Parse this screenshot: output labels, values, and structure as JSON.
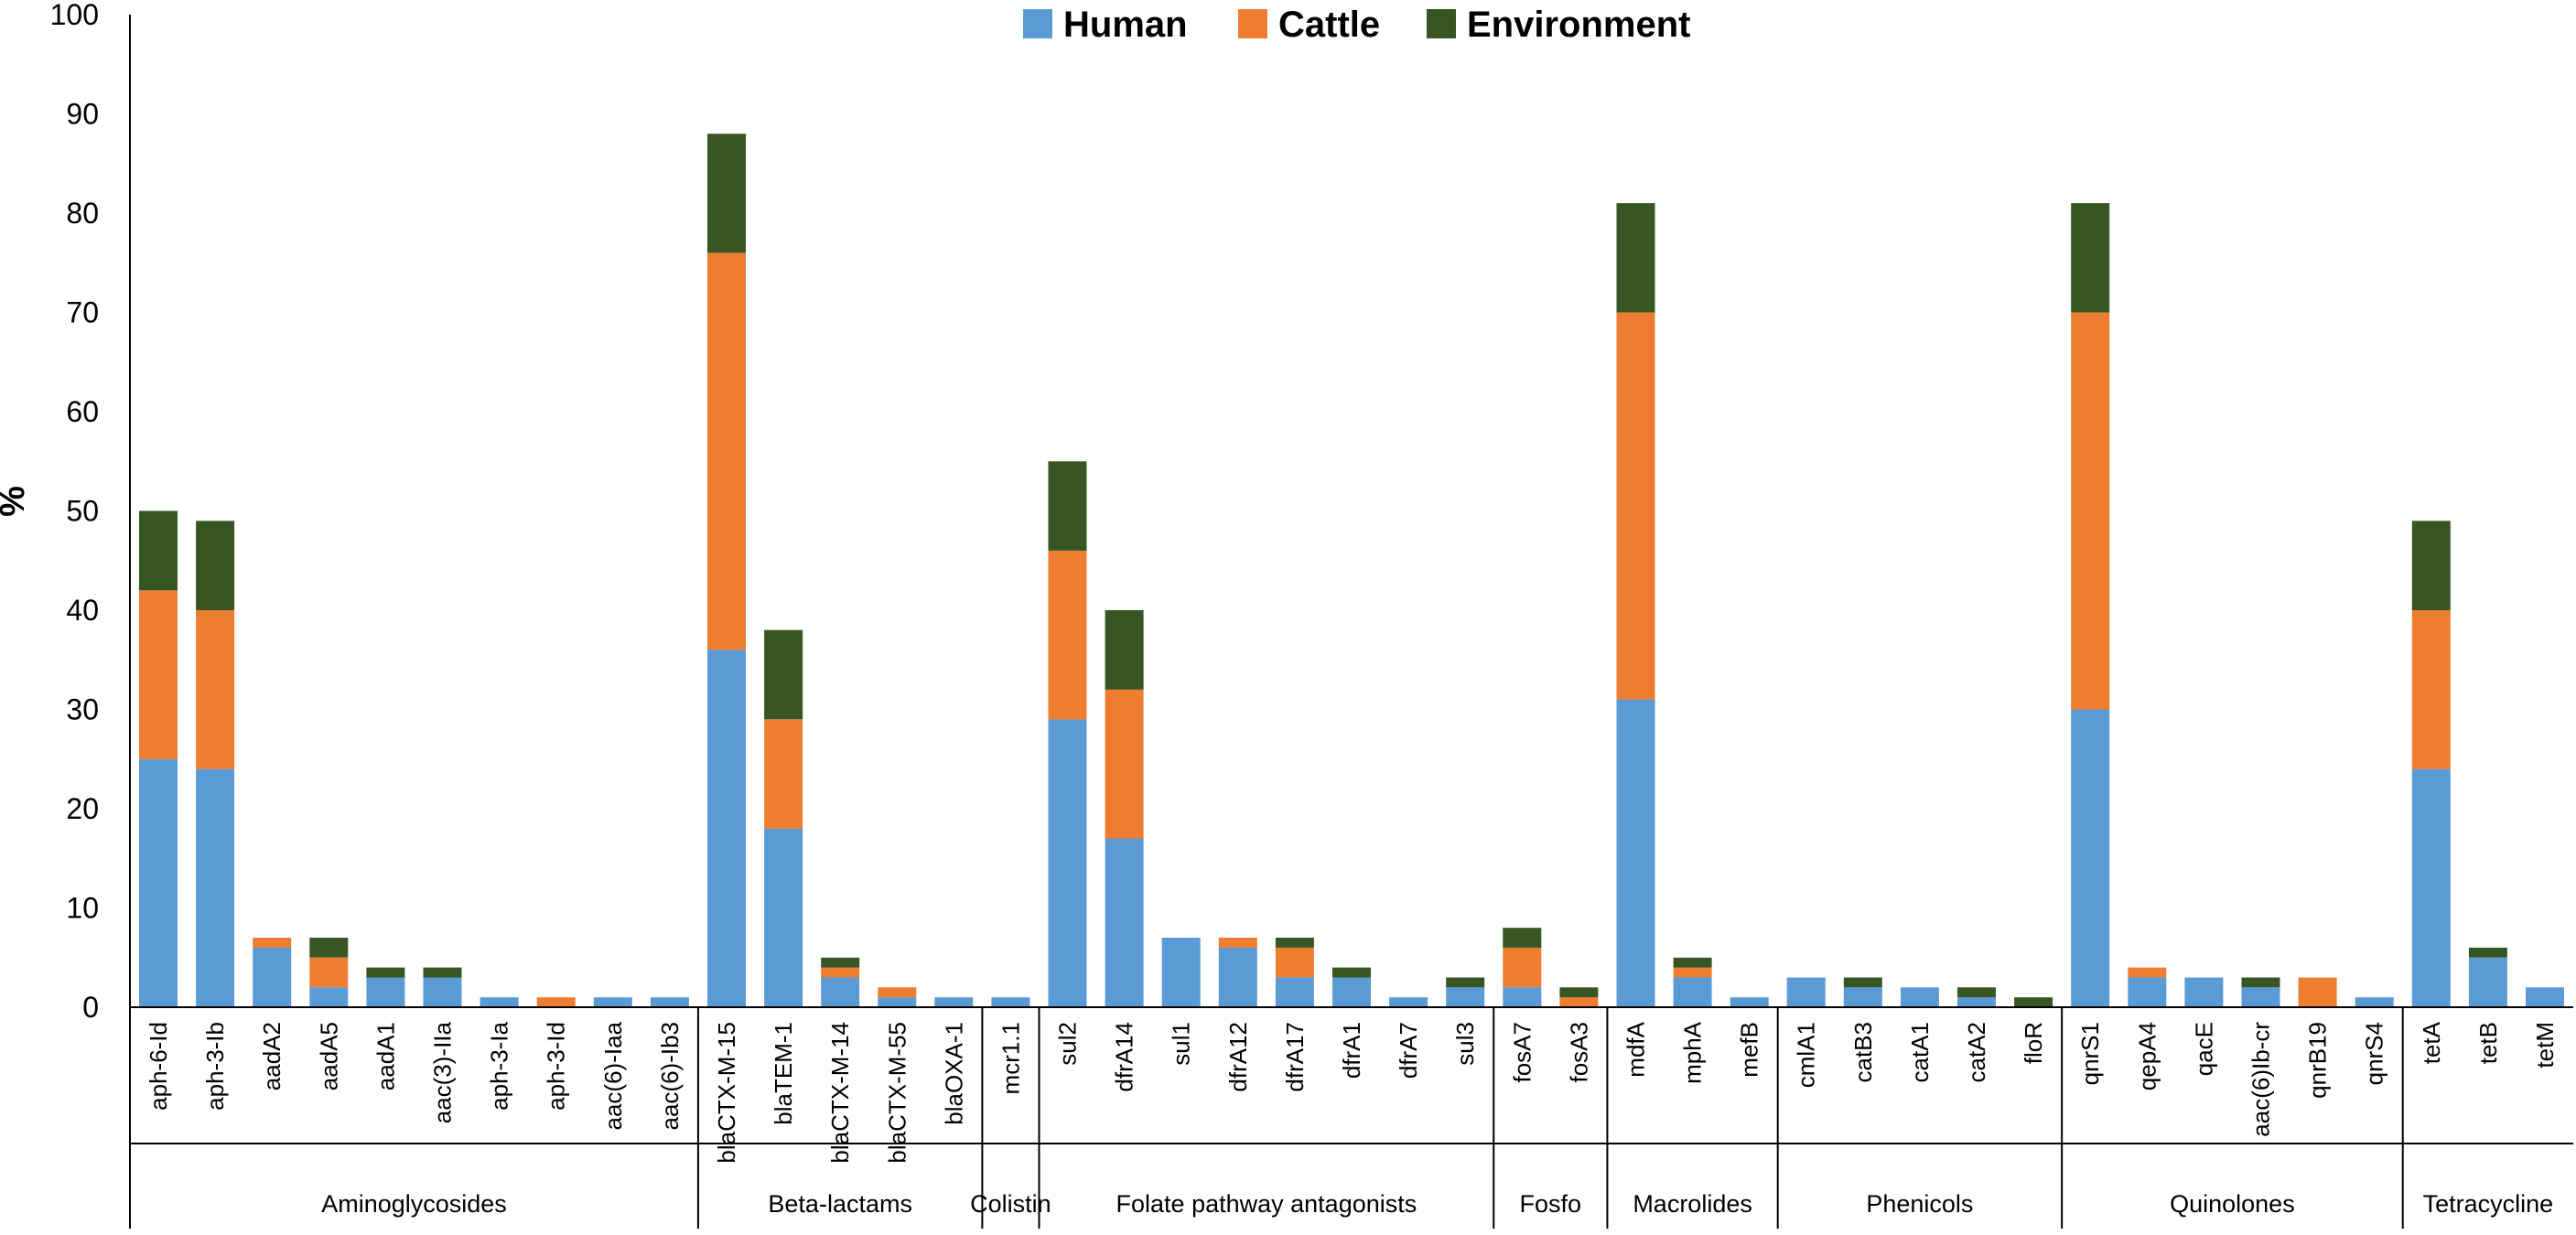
{
  "chart_data": {
    "type": "bar",
    "stacked": true,
    "title": "",
    "xlabel": "",
    "ylabel": "%",
    "ylim": [
      0,
      100
    ],
    "yticks": [
      0,
      10,
      20,
      30,
      40,
      50,
      60,
      70,
      80,
      90,
      100
    ],
    "legend_position": "top-center",
    "series": [
      {
        "name": "Human",
        "color": "#5B9BD5"
      },
      {
        "name": "Cattle",
        "color": "#ED7D31"
      },
      {
        "name": "Environment",
        "color": "#375623"
      }
    ],
    "groups": [
      {
        "name": "Aminoglycosides",
        "categories": [
          {
            "label": "aph-6-Id",
            "values": [
              25,
              17,
              8
            ]
          },
          {
            "label": "aph-3-Ib",
            "values": [
              24,
              16,
              9
            ]
          },
          {
            "label": "aadA2",
            "values": [
              6,
              1,
              0
            ]
          },
          {
            "label": "aadA5",
            "values": [
              2,
              3,
              2
            ]
          },
          {
            "label": "aadA1",
            "values": [
              3,
              0,
              1
            ]
          },
          {
            "label": "aac(3)-IIa",
            "values": [
              3,
              0,
              1
            ]
          },
          {
            "label": "aph-3-Ia",
            "values": [
              1,
              0,
              0
            ]
          },
          {
            "label": "aph-3-Id",
            "values": [
              0,
              1,
              0
            ]
          },
          {
            "label": "aac(6)-Iaa",
            "values": [
              1,
              0,
              0
            ]
          },
          {
            "label": "aac(6)-Ib3",
            "values": [
              1,
              0,
              0
            ]
          }
        ]
      },
      {
        "name": "Beta-lactams",
        "categories": [
          {
            "label": "blaCTX-M-15",
            "values": [
              36,
              40,
              12
            ]
          },
          {
            "label": "blaTEM-1",
            "values": [
              18,
              11,
              9
            ]
          },
          {
            "label": "blaCTX-M-14",
            "values": [
              3,
              1,
              1
            ]
          },
          {
            "label": "blaCTX-M-55",
            "values": [
              1,
              1,
              0
            ]
          },
          {
            "label": "blaOXA-1",
            "values": [
              1,
              0,
              0
            ]
          }
        ]
      },
      {
        "name": "Colistin",
        "categories": [
          {
            "label": "mcr1.1",
            "values": [
              1,
              0,
              0
            ]
          }
        ]
      },
      {
        "name": "Folate pathway antagonists",
        "categories": [
          {
            "label": "sul2",
            "values": [
              29,
              17,
              9
            ]
          },
          {
            "label": "dfrA14",
            "values": [
              17,
              15,
              8
            ]
          },
          {
            "label": "sul1",
            "values": [
              7,
              0,
              0
            ]
          },
          {
            "label": "dfrA12",
            "values": [
              6,
              1,
              0
            ]
          },
          {
            "label": "dfrA17",
            "values": [
              3,
              3,
              1
            ]
          },
          {
            "label": "dfrA1",
            "values": [
              3,
              0,
              1
            ]
          },
          {
            "label": "dfrA7",
            "values": [
              1,
              0,
              0
            ]
          },
          {
            "label": "sul3",
            "values": [
              2,
              0,
              1
            ]
          }
        ]
      },
      {
        "name": "Fosfo",
        "categories": [
          {
            "label": "fosA7",
            "values": [
              2,
              4,
              2
            ]
          },
          {
            "label": "fosA3",
            "values": [
              0,
              1,
              1
            ]
          }
        ]
      },
      {
        "name": "Macrolides",
        "categories": [
          {
            "label": "mdfA",
            "values": [
              31,
              39,
              11
            ]
          },
          {
            "label": "mphA",
            "values": [
              3,
              1,
              1
            ]
          },
          {
            "label": "mefB",
            "values": [
              1,
              0,
              0
            ]
          }
        ]
      },
      {
        "name": "Phenicols",
        "categories": [
          {
            "label": "cmlA1",
            "values": [
              3,
              0,
              0
            ]
          },
          {
            "label": "catB3",
            "values": [
              2,
              0,
              1
            ]
          },
          {
            "label": "catA1",
            "values": [
              2,
              0,
              0
            ]
          },
          {
            "label": "catA2",
            "values": [
              1,
              0,
              1
            ]
          },
          {
            "label": "floR",
            "values": [
              0,
              0,
              1
            ]
          }
        ]
      },
      {
        "name": "Quinolones",
        "categories": [
          {
            "label": "qnrS1",
            "values": [
              30,
              40,
              11
            ]
          },
          {
            "label": "qepA4",
            "values": [
              3,
              1,
              0
            ]
          },
          {
            "label": "qacE",
            "values": [
              3,
              0,
              0
            ]
          },
          {
            "label": "aac(6)Ib-cr",
            "values": [
              2,
              0,
              1
            ]
          },
          {
            "label": "qnrB19",
            "values": [
              0,
              3,
              0
            ]
          },
          {
            "label": "qnrS4",
            "values": [
              1,
              0,
              0
            ]
          }
        ]
      },
      {
        "name": "Tetracycline",
        "categories": [
          {
            "label": "tetA",
            "values": [
              24,
              16,
              9
            ]
          },
          {
            "label": "tetB",
            "values": [
              5,
              0,
              1
            ]
          },
          {
            "label": "tetM",
            "values": [
              2,
              0,
              0
            ]
          }
        ]
      }
    ]
  }
}
